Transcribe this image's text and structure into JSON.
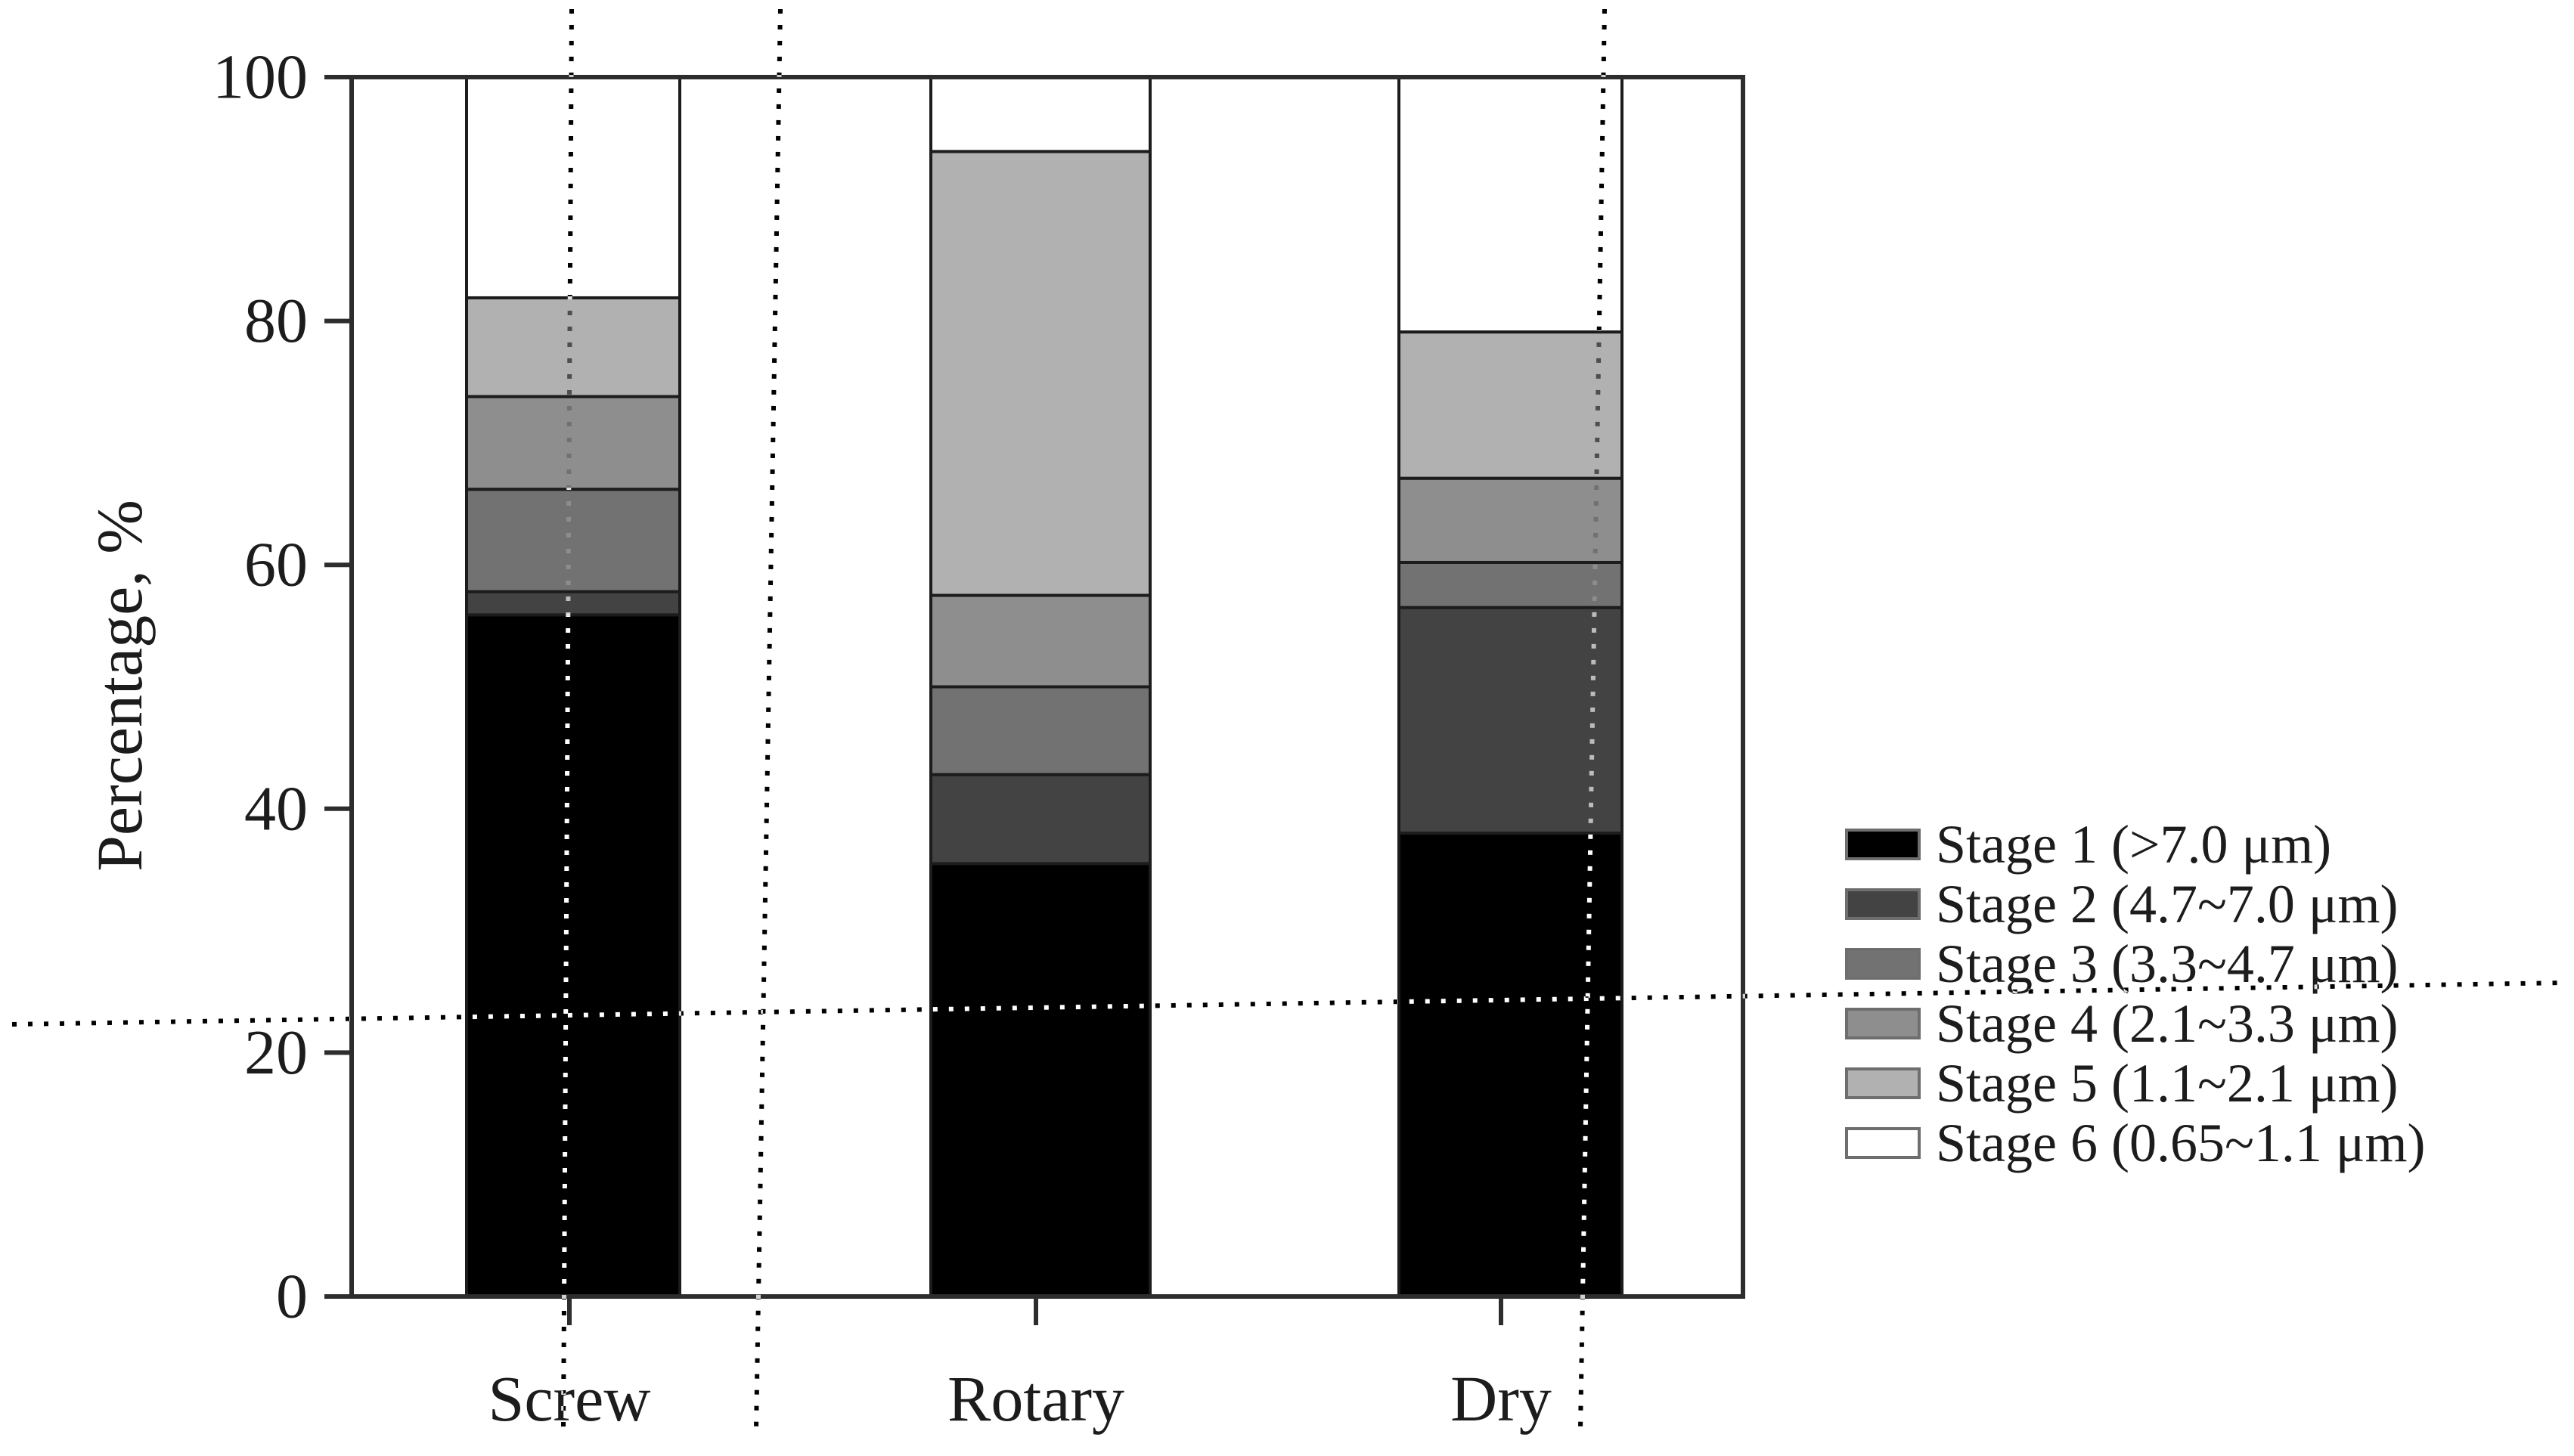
{
  "figure": {
    "background_color": "#ffffff",
    "axis_color": "#2d2d2d",
    "y_axis": {
      "title": "Percentage, %",
      "tick_labels": [
        "0",
        "20",
        "40",
        "60",
        "80",
        "100"
      ]
    },
    "x_axis": {
      "tick_labels": [
        "Screw",
        "Rotary",
        "Dry"
      ]
    }
  },
  "chart_data": {
    "type": "bar",
    "stacked": true,
    "orientation": "vertical",
    "title": "",
    "xlabel": "",
    "ylabel": "Percentage, %",
    "ylim": [
      0,
      100
    ],
    "yticks": [
      0,
      20,
      40,
      60,
      80,
      100
    ],
    "grid": false,
    "legend_position": "right",
    "categories": [
      "Screw",
      "Rotary",
      "Dry"
    ],
    "series": [
      {
        "name": "Stage 1 (>7.0 μm)",
        "color": "#000000",
        "values": [
          55.9,
          35.5,
          38.0
        ]
      },
      {
        "name": "Stage 2 (4.7~7.0 μm)",
        "color": "#434343",
        "values": [
          1.9,
          7.3,
          18.5
        ]
      },
      {
        "name": "Stage 3 (3.3~4.7 μm)",
        "color": "#727272",
        "values": [
          8.4,
          7.2,
          3.7
        ]
      },
      {
        "name": "Stage 4 (2.1~3.3 μm)",
        "color": "#8e8e8e",
        "values": [
          7.6,
          7.5,
          6.9
        ]
      },
      {
        "name": "Stage 5 (1.1~2.1 μm)",
        "color": "#b1b1b1",
        "values": [
          8.1,
          36.4,
          12.0
        ]
      },
      {
        "name": "Stage 6 (0.65~1.1 μm)",
        "color": "#ffffff",
        "values": [
          18.1,
          6.1,
          20.9
        ]
      }
    ]
  }
}
